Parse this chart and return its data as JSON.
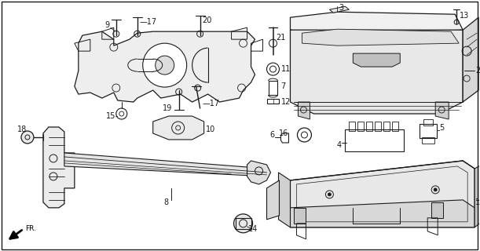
{
  "background_color": "#ffffff",
  "line_color": "#1a1a1a",
  "fig_width": 6.11,
  "fig_height": 3.2,
  "dpi": 100
}
